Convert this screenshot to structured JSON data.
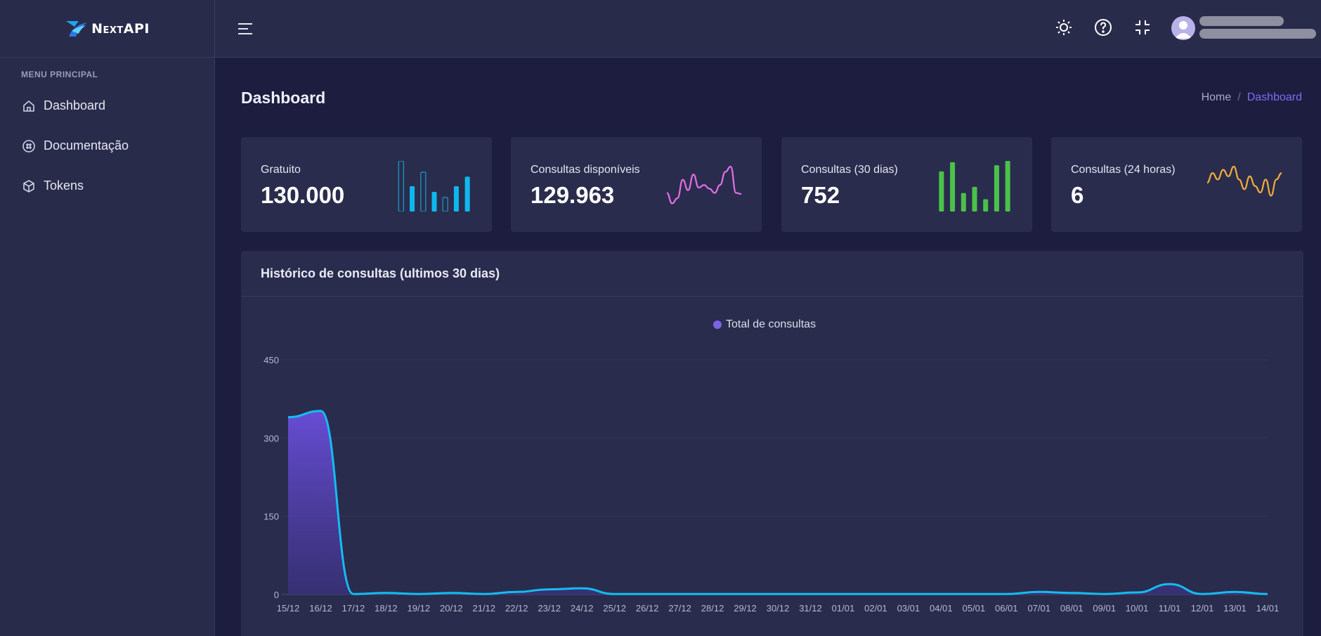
{
  "app": {
    "logo_text": "NextAPI"
  },
  "sidebar": {
    "menu_title": "MENU PRINCIPAL",
    "items": [
      {
        "label": "Dashboard",
        "icon": "home-icon"
      },
      {
        "label": "Documentação",
        "icon": "documentation-icon"
      },
      {
        "label": "Tokens",
        "icon": "box-icon"
      }
    ]
  },
  "topbar": {
    "icons": [
      "menu-icon",
      "sun-icon",
      "help-icon",
      "minimize-icon",
      "avatar"
    ]
  },
  "page": {
    "title": "Dashboard",
    "breadcrumb": {
      "home": "Home",
      "separator": "/",
      "current": "Dashboard"
    }
  },
  "colors": {
    "accent": "#7b6ef6",
    "card1": "#0eb8ee",
    "card2": "#e56fe6",
    "card3": "#4ac24a",
    "card4": "#f0ae3b",
    "line": "#13bdf2",
    "area_top": "#6a4fdc"
  },
  "cards": [
    {
      "label": "Gratuito",
      "value": "130.000",
      "spark_type": "bar",
      "color": "#0eb8ee",
      "spark": [
        90,
        45,
        70,
        35,
        25,
        45,
        62
      ]
    },
    {
      "label": "Consultas disponíveis",
      "value": "129.963",
      "spark_type": "line",
      "color": "#e56fe6",
      "spark": [
        30,
        10,
        20,
        55,
        35,
        65,
        40,
        45,
        38,
        30,
        45,
        70,
        80,
        30,
        28
      ]
    },
    {
      "label": "Consultas (30 dias)",
      "value": "752",
      "spark_type": "bar",
      "color": "#4ac24a",
      "spark": [
        65,
        80,
        30,
        40,
        20,
        75,
        82
      ]
    },
    {
      "label": "Consultas (24 horas)",
      "value": "6",
      "spark_type": "line",
      "color": "#f0ae3b",
      "spark": [
        40,
        55,
        45,
        60,
        50,
        65,
        45,
        30,
        50,
        35,
        25,
        45,
        20,
        45,
        55
      ]
    }
  ],
  "history": {
    "title": "Histórico de consultas (ultimos 30 dias)"
  },
  "chart_data": {
    "type": "area",
    "title": "Histórico de consultas (ultimos 30 dias)",
    "legend": [
      "Total de consultas"
    ],
    "legend_position": "top",
    "grid": true,
    "ylim": [
      0,
      450
    ],
    "yticks": [
      0,
      150,
      300,
      450
    ],
    "categories": [
      "15/12",
      "16/12",
      "17/12",
      "18/12",
      "19/12",
      "20/12",
      "21/12",
      "22/12",
      "23/12",
      "24/12",
      "25/12",
      "26/12",
      "27/12",
      "28/12",
      "29/12",
      "30/12",
      "31/12",
      "01/01",
      "02/01",
      "03/01",
      "04/01",
      "05/01",
      "06/01",
      "07/01",
      "08/01",
      "09/01",
      "10/01",
      "11/01",
      "12/01",
      "13/01",
      "14/01"
    ],
    "series": [
      {
        "name": "Total de consultas",
        "values": [
          340,
          352,
          1,
          3,
          1,
          3,
          1,
          5,
          10,
          12,
          1,
          1,
          1,
          1,
          1,
          1,
          1,
          1,
          1,
          1,
          1,
          1,
          1,
          5,
          3,
          1,
          4,
          20,
          1,
          5,
          1
        ]
      }
    ]
  }
}
